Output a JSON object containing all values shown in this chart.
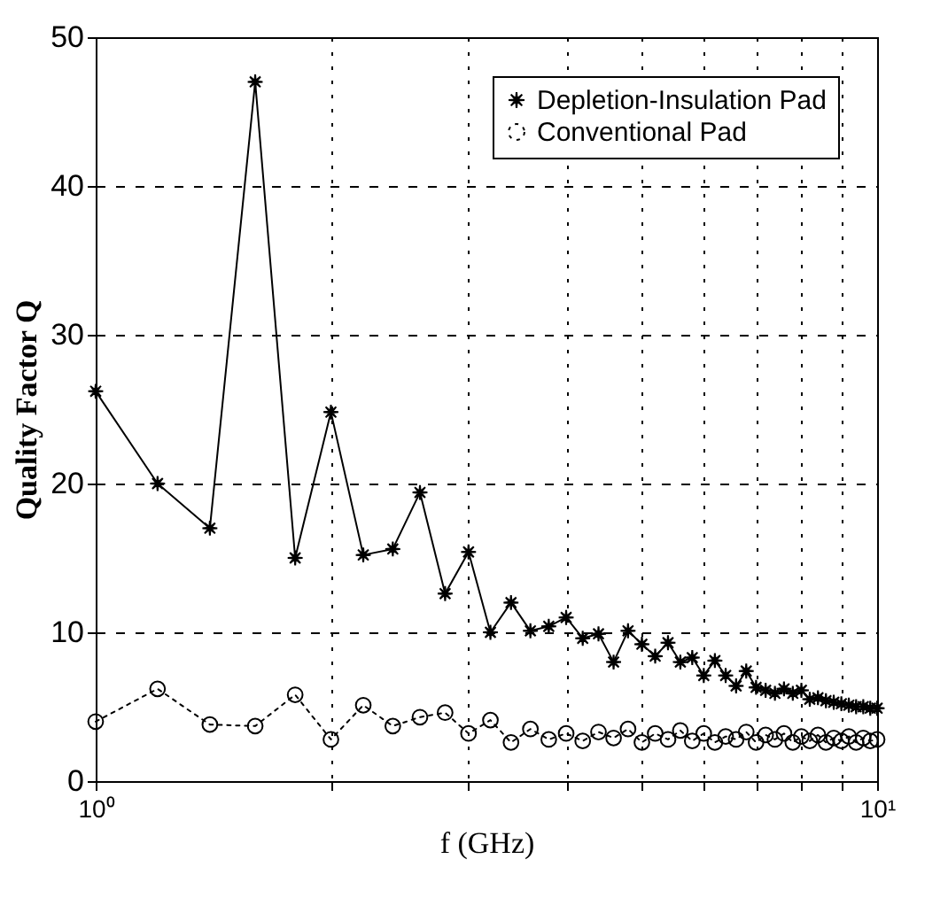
{
  "chart_data": {
    "type": "line",
    "xlabel": "f (GHz)",
    "ylabel": "Quality Factor Q",
    "x": [
      1.0,
      1.2,
      1.4,
      1.6,
      1.8,
      2.0,
      2.2,
      2.4,
      2.6,
      2.8,
      3.0,
      3.2,
      3.4,
      3.6,
      3.8,
      4.0,
      4.2,
      4.4,
      4.6,
      4.8,
      5.0,
      5.2,
      5.4,
      5.6,
      5.8,
      6.0,
      6.2,
      6.4,
      6.6,
      6.8,
      7.0,
      7.2,
      7.4,
      7.6,
      7.8,
      8.0,
      8.2,
      8.4,
      8.6,
      8.8,
      9.0,
      9.2,
      9.4,
      9.6,
      9.8,
      10.0
    ],
    "series": [
      {
        "name": "Depletion-Insulation Pad",
        "color": "#000000",
        "marker": "star",
        "line_style": "solid",
        "values": [
          26.2,
          20,
          17,
          47,
          15,
          24.8,
          15.2,
          15.6,
          19.4,
          12.6,
          15.4,
          10,
          12,
          10.1,
          10.4,
          11,
          9.6,
          9.9,
          8,
          10.1,
          9.2,
          8.4,
          9.3,
          8,
          8.3,
          7.1,
          8.1,
          7.1,
          6.4,
          7.4,
          6.3,
          6.1,
          5.9,
          6.2,
          5.9,
          6.1,
          5.5,
          5.6,
          5.4,
          5.3,
          5.2,
          5.1,
          5,
          5,
          4.9,
          4.9
        ]
      },
      {
        "name": "Conventional Pad",
        "color": "#000000",
        "marker": "circle",
        "line_style": "dotted",
        "values": [
          4,
          6.2,
          3.8,
          3.7,
          5.8,
          2.8,
          5.1,
          3.7,
          4.3,
          4.6,
          3.2,
          4.1,
          2.6,
          3.5,
          2.8,
          3.2,
          2.7,
          3.3,
          2.9,
          3.5,
          2.6,
          3.2,
          2.8,
          3.4,
          2.7,
          3.2,
          2.6,
          3,
          2.8,
          3.3,
          2.6,
          3.1,
          2.8,
          3.2,
          2.6,
          3,
          2.7,
          3.1,
          2.6,
          2.9,
          2.7,
          3,
          2.6,
          2.9,
          2.7,
          2.8
        ]
      }
    ],
    "xlim": [
      1,
      10
    ],
    "xticks": [
      {
        "value": 1,
        "label": "10⁰"
      },
      {
        "value": 2,
        "label": null
      },
      {
        "value": 3,
        "label": null
      },
      {
        "value": 4,
        "label": null
      },
      {
        "value": 5,
        "label": null
      },
      {
        "value": 6,
        "label": null
      },
      {
        "value": 7,
        "label": null
      },
      {
        "value": 8,
        "label": null
      },
      {
        "value": 9,
        "label": null
      },
      {
        "value": 10,
        "label": "10¹"
      }
    ],
    "ylim": [
      0,
      50
    ],
    "yticks": [
      0,
      10,
      20,
      30,
      40,
      50
    ],
    "log": "x",
    "grid": true,
    "legend": "top right"
  }
}
